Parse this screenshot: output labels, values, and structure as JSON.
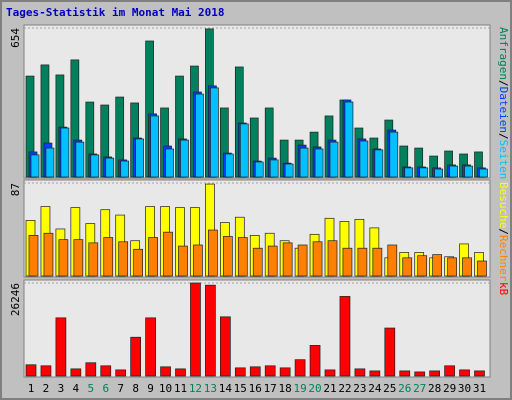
{
  "chart_data": [
    {
      "type": "bar",
      "title": "Tages-Statistik im Monat Mai 2018",
      "legend_separator": "/",
      "ylim": [
        0,
        654
      ],
      "yticks": [
        654
      ],
      "grid": true,
      "series": [
        {
          "name": "Anfragen",
          "color": "#00805c",
          "values": [
            443,
            492,
            448,
            514,
            329,
            316,
            351,
            325,
            597,
            303,
            443,
            487,
            650,
            303,
            483,
            259,
            303,
            162,
            162,
            197,
            268,
            338,
            215,
            171,
            250,
            136,
            127,
            92,
            114,
            101,
            110
          ]
        },
        {
          "name": "Dateien",
          "color": "#0040ff",
          "values": [
            110,
            149,
            219,
            162,
            101,
            88,
            75,
            171,
            277,
            136,
            167,
            373,
            400,
            105,
            237,
            70,
            83,
            61,
            140,
            132,
            162,
            338,
            167,
            123,
            206,
            44,
            44,
            40,
            53,
            53,
            40
          ]
        },
        {
          "name": "Seiten",
          "color": "#00c0ff",
          "values": [
            97,
            127,
            215,
            153,
            97,
            83,
            70,
            167,
            268,
            123,
            162,
            364,
            391,
            101,
            233,
            66,
            75,
            57,
            127,
            123,
            153,
            329,
            158,
            119,
            197,
            40,
            40,
            35,
            48,
            48,
            35
          ]
        }
      ]
    },
    {
      "type": "bar",
      "legend_separator": "/",
      "ylim": [
        0,
        87
      ],
      "yticks": [
        87
      ],
      "grid": true,
      "series": [
        {
          "name": "Besuche",
          "color": "#ffff00",
          "values": [
            52,
            65,
            44,
            64,
            49,
            62,
            57,
            33,
            65,
            65,
            64,
            64,
            86,
            50,
            55,
            38,
            40,
            33,
            26,
            39,
            54,
            51,
            53,
            45,
            17,
            22,
            22,
            17,
            18,
            30,
            22
          ]
        },
        {
          "name": "Rechner",
          "color": "#ff8000",
          "values": [
            38,
            40,
            34,
            34,
            31,
            36,
            32,
            25,
            36,
            41,
            28,
            29,
            43,
            37,
            36,
            26,
            28,
            31,
            29,
            32,
            33,
            26,
            26,
            26,
            29,
            17,
            19,
            20,
            17,
            17,
            14
          ]
        }
      ]
    },
    {
      "type": "bar",
      "ylim": [
        0,
        26246
      ],
      "yticks": [
        26246
      ],
      "grid": true,
      "categories": [
        "1",
        "2",
        "3",
        "4",
        "5",
        "6",
        "7",
        "8",
        "9",
        "10",
        "11",
        "12",
        "13",
        "14",
        "15",
        "16",
        "17",
        "18",
        "19",
        "20",
        "21",
        "22",
        "23",
        "24",
        "25",
        "26",
        "27",
        "28",
        "29",
        "30",
        "31"
      ],
      "category_colors": [
        "#000000",
        "#000000",
        "#000000",
        "#000000",
        "#00805c",
        "#00805c",
        "#000000",
        "#000000",
        "#000000",
        "#000000",
        "#000000",
        "#00805c",
        "#00805c",
        "#000000",
        "#000000",
        "#000000",
        "#000000",
        "#000000",
        "#00805c",
        "#00805c",
        "#000000",
        "#000000",
        "#000000",
        "#000000",
        "#000000",
        "#00805c",
        "#00805c",
        "#000000",
        "#000000",
        "#000000",
        "#000000"
      ],
      "series": [
        {
          "name": "kB",
          "color": "#ff0000",
          "values": [
            3168,
            2880,
            16416,
            2016,
            3744,
            2880,
            1728,
            10944,
            16416,
            2592,
            2016,
            26246,
            25632,
            16704,
            2304,
            2592,
            2880,
            2304,
            4608,
            8640,
            1728,
            22464,
            2016,
            1440,
            13536,
            1440,
            1152,
            1440,
            2880,
            1728,
            1440
          ]
        }
      ]
    }
  ]
}
